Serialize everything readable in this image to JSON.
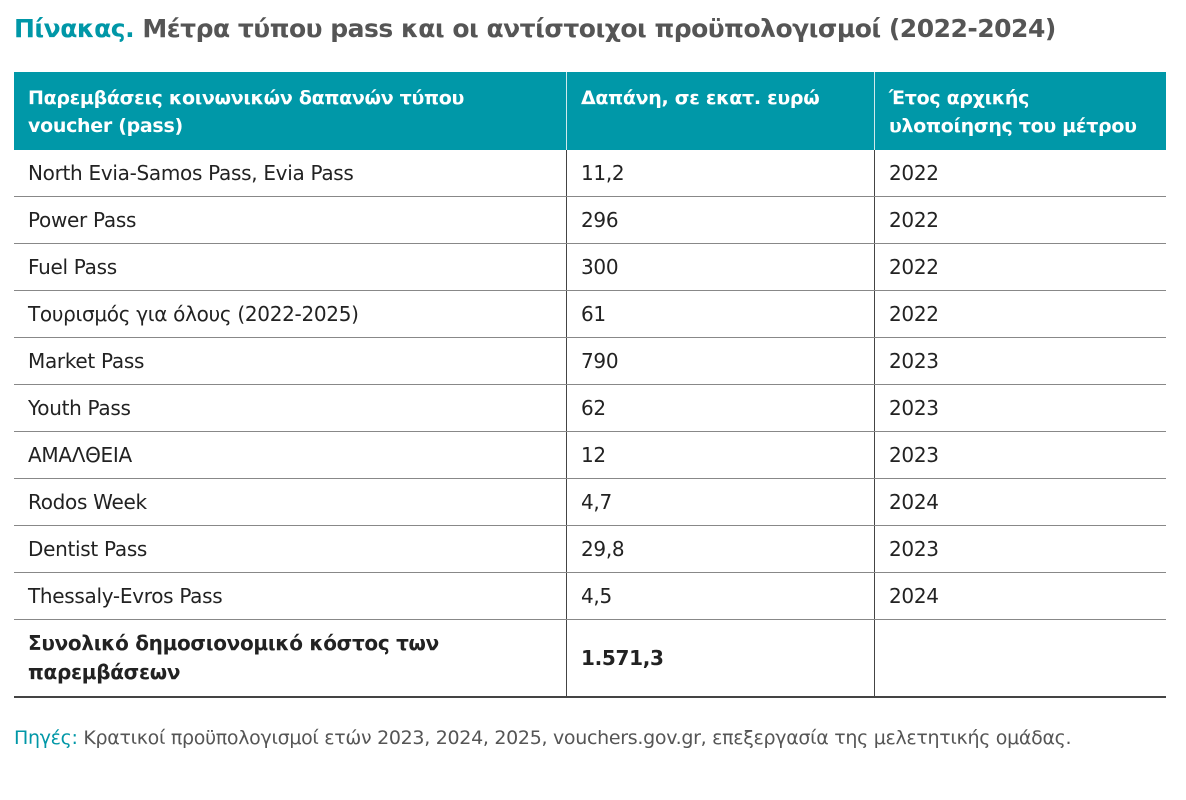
{
  "title": {
    "label": "Πίνακας.",
    "text": " Μέτρα τύπου pass και οι αντίστοιχοι προϋπολογισμοί (2022-2024)"
  },
  "table": {
    "headers": [
      "Παρεμβάσεις κοινωνικών δαπανών τύπου voucher (pass)",
      "Δαπάνη, σε εκατ. ευρώ",
      "Έτος αρχικής υλοποίησης του μέτρου"
    ],
    "rows": [
      [
        "North Evia-Samos Pass, Evia Pass",
        "11,2",
        "2022"
      ],
      [
        "Power Pass",
        "296",
        "2022"
      ],
      [
        "Fuel Pass",
        "300",
        "2022"
      ],
      [
        "Τουρισμός για όλους (2022-2025)",
        "61",
        "2022"
      ],
      [
        "Market Pass",
        "790",
        "2023"
      ],
      [
        "Youth Pass",
        "62",
        "2023"
      ],
      [
        "ΑΜΑΛΘΕΙΑ",
        "12",
        "2023"
      ],
      [
        "Rodos Week",
        "4,7",
        "2024"
      ],
      [
        "Dentist Pass",
        "29,8",
        "2023"
      ],
      [
        "Thessaly-Evros Pass",
        "4,5",
        "2024"
      ]
    ],
    "total": {
      "label": "Συνολικό δημοσιονομικό κόστος των παρεμβάσεων",
      "value": "1.571,3",
      "year": ""
    }
  },
  "sources": {
    "label": "Πηγές:",
    "text": " Κρατικοί προϋπολογισμοί ετών 2023, 2024, 2025, vouchers.gov.gr, επεξεργασία της μελετητικής ομάδας."
  },
  "colors": {
    "accent": "#0098a8"
  }
}
